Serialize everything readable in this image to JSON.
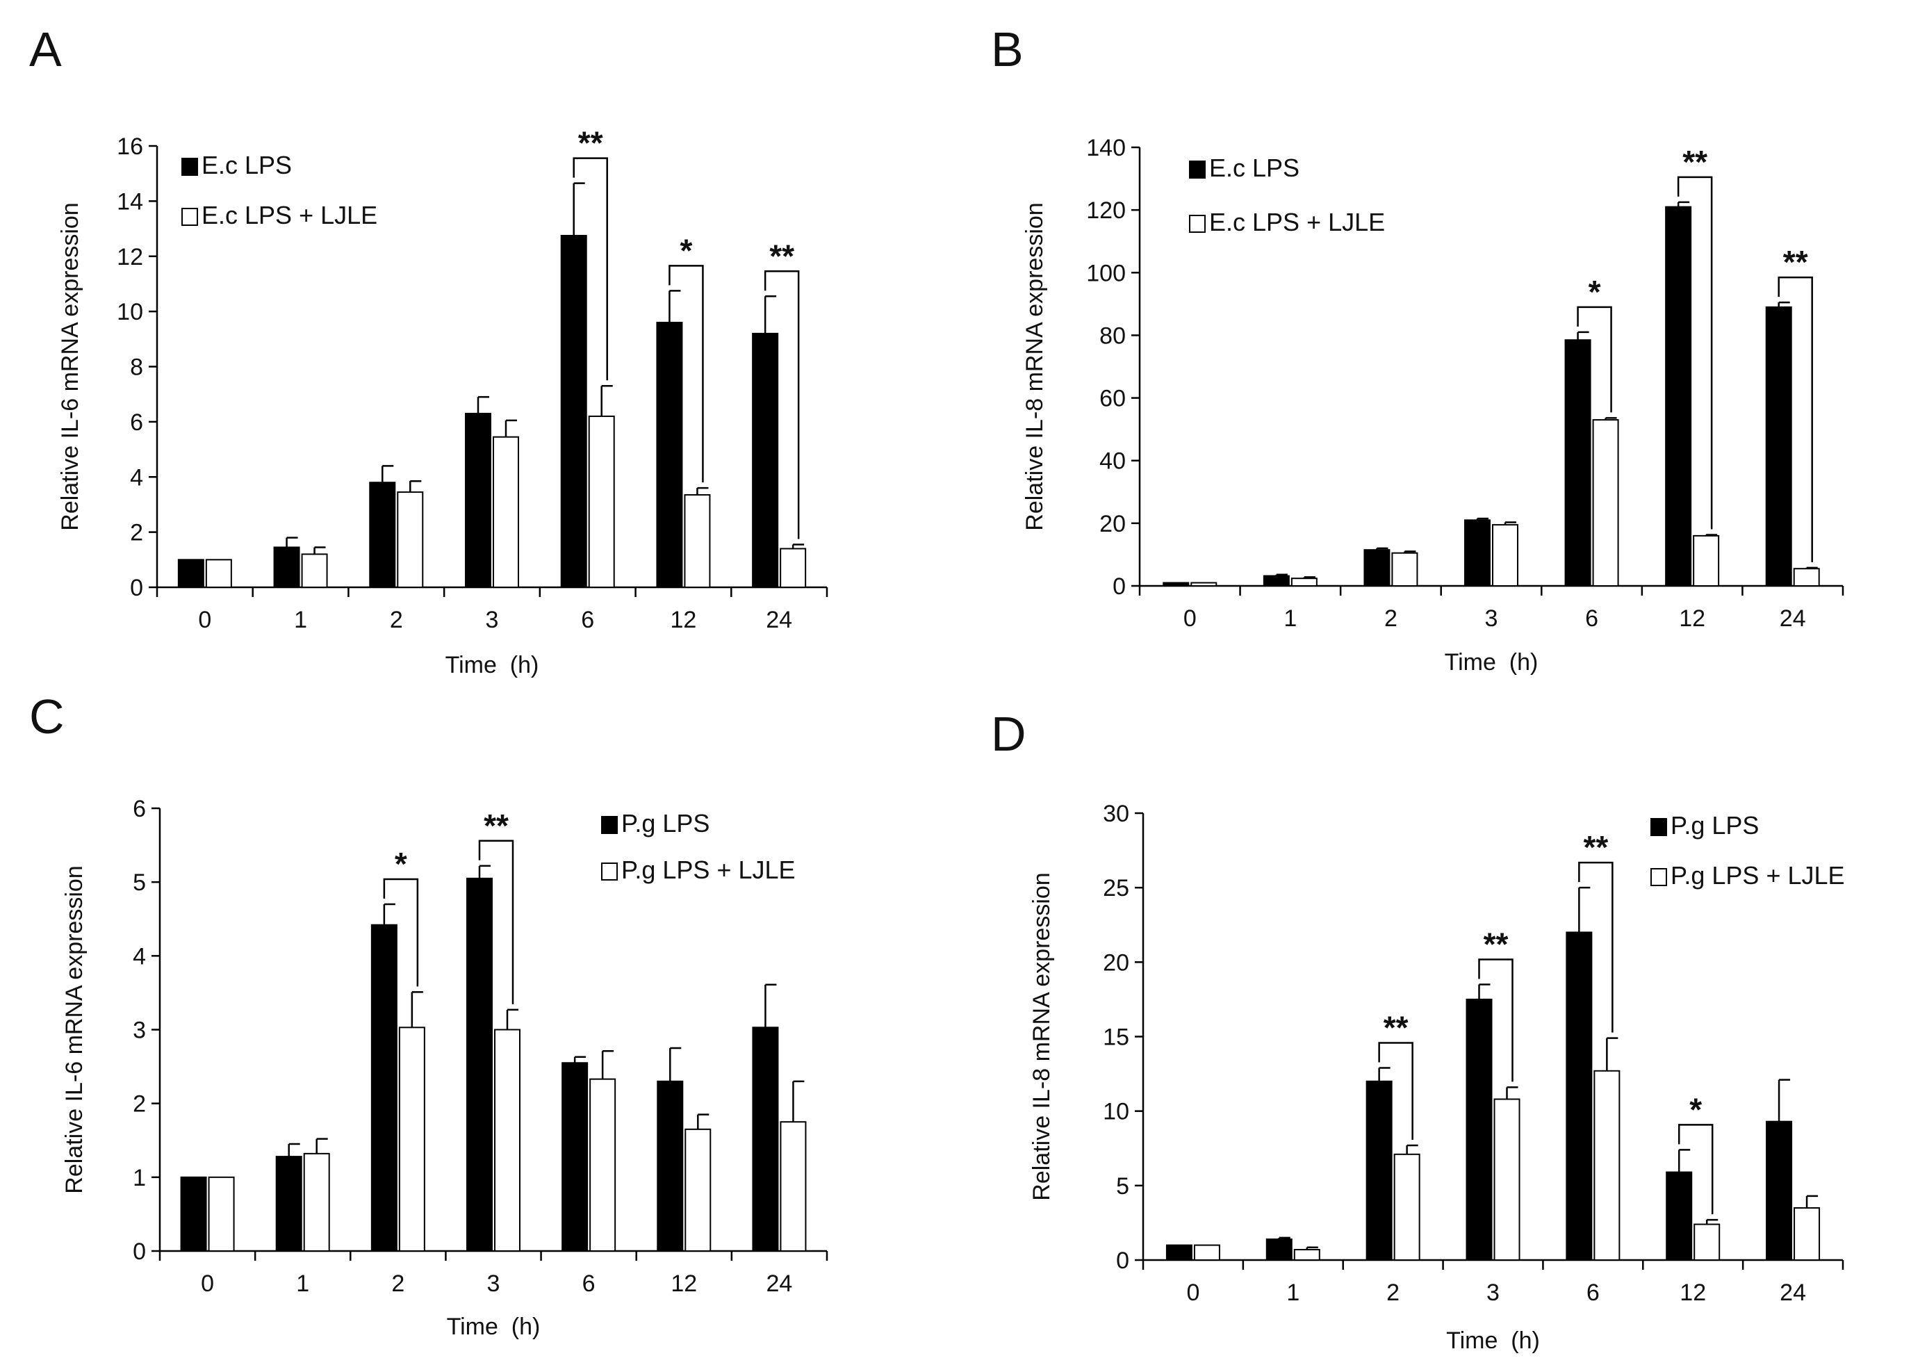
{
  "chart_data": [
    {
      "panel": "A",
      "type": "bar",
      "ylabel": "Relative IL-6 mRNA expression",
      "xlabel": "Time  (h)",
      "categories": [
        "0",
        "1",
        "2",
        "3",
        "6",
        "12",
        "24"
      ],
      "ylim": [
        0,
        16
      ],
      "yticks": [
        0,
        2,
        4,
        6,
        8,
        10,
        12,
        14,
        16
      ],
      "legend_position": "top-left",
      "series": [
        {
          "name": "E.c LPS",
          "fill": "#000000",
          "values": [
            1.0,
            1.45,
            3.8,
            6.3,
            12.75,
            9.6,
            9.2
          ],
          "errors": [
            0.0,
            0.35,
            0.6,
            0.6,
            1.9,
            1.15,
            1.35
          ]
        },
        {
          "name": "E.c LPS + LJLE",
          "fill": "#ffffff",
          "values": [
            1.0,
            1.2,
            3.45,
            5.45,
            6.2,
            3.35,
            1.4
          ],
          "errors": [
            0.0,
            0.25,
            0.4,
            0.6,
            1.1,
            0.25,
            0.15
          ]
        }
      ],
      "significance": [
        {
          "category": "6",
          "label": "**"
        },
        {
          "category": "12",
          "label": "*"
        },
        {
          "category": "24",
          "label": "**"
        }
      ]
    },
    {
      "panel": "B",
      "type": "bar",
      "ylabel": "Relative IL-8 mRNA expression",
      "xlabel": "Time  (h)",
      "categories": [
        "0",
        "1",
        "2",
        "3",
        "6",
        "12",
        "24"
      ],
      "ylim": [
        0,
        140
      ],
      "yticks": [
        0,
        20,
        40,
        60,
        80,
        100,
        120,
        140
      ],
      "legend_position": "top-left",
      "series": [
        {
          "name": "E.c LPS",
          "fill": "#000000",
          "values": [
            1.0,
            3.2,
            11.5,
            21.0,
            78.5,
            121.0,
            89.0
          ],
          "errors": [
            0.0,
            0.4,
            0.5,
            0.5,
            2.5,
            1.5,
            1.5
          ]
        },
        {
          "name": "E.c LPS + LJLE",
          "fill": "#ffffff",
          "values": [
            1.0,
            2.4,
            10.5,
            19.5,
            53.0,
            16.0,
            5.5
          ],
          "errors": [
            0.0,
            0.4,
            0.5,
            0.8,
            0.6,
            0.3,
            0.3
          ]
        }
      ],
      "significance": [
        {
          "category": "6",
          "label": "*"
        },
        {
          "category": "12",
          "label": "**"
        },
        {
          "category": "24",
          "label": "**"
        }
      ]
    },
    {
      "panel": "C",
      "type": "bar",
      "ylabel": "Relative IL-6 mRNA expression",
      "xlabel": "Time  (h)",
      "categories": [
        "0",
        "1",
        "2",
        "3",
        "6",
        "12",
        "24"
      ],
      "ylim": [
        0,
        6
      ],
      "yticks": [
        0,
        1,
        2,
        3,
        4,
        5,
        6
      ],
      "legend_position": "top-right",
      "series": [
        {
          "name": "P.g LPS",
          "fill": "#000000",
          "values": [
            1.0,
            1.28,
            4.42,
            5.05,
            2.55,
            2.3,
            3.03
          ],
          "errors": [
            0.0,
            0.17,
            0.28,
            0.17,
            0.08,
            0.45,
            0.58
          ]
        },
        {
          "name": "P.g LPS + LJLE",
          "fill": "#ffffff",
          "values": [
            1.0,
            1.32,
            3.03,
            3.0,
            2.33,
            1.65,
            1.75
          ],
          "errors": [
            0.0,
            0.2,
            0.48,
            0.27,
            0.38,
            0.2,
            0.55
          ]
        }
      ],
      "significance": [
        {
          "category": "2",
          "label": "*"
        },
        {
          "category": "3",
          "label": "**"
        }
      ]
    },
    {
      "panel": "D",
      "type": "bar",
      "ylabel": "Relative IL-8 mRNA expression",
      "xlabel": "Time  (h)",
      "categories": [
        "0",
        "1",
        "2",
        "3",
        "6",
        "12",
        "24"
      ],
      "ylim": [
        0,
        30
      ],
      "yticks": [
        0,
        5,
        10,
        15,
        20,
        25,
        30
      ],
      "legend_position": "top-right",
      "series": [
        {
          "name": "P.g LPS",
          "fill": "#000000",
          "values": [
            1.0,
            1.4,
            12.0,
            17.5,
            22.0,
            5.9,
            9.3
          ],
          "errors": [
            0.0,
            0.1,
            0.9,
            1.0,
            3.0,
            1.5,
            2.8
          ]
        },
        {
          "name": "P.g LPS + LJLE",
          "fill": "#ffffff",
          "values": [
            1.0,
            0.7,
            7.1,
            10.8,
            12.7,
            2.4,
            3.5
          ],
          "errors": [
            0.0,
            0.15,
            0.6,
            0.8,
            2.2,
            0.3,
            0.8
          ]
        }
      ],
      "significance": [
        {
          "category": "2",
          "label": "**"
        },
        {
          "category": "3",
          "label": "**"
        },
        {
          "category": "6",
          "label": "**"
        },
        {
          "category": "12",
          "label": "*"
        }
      ]
    }
  ]
}
